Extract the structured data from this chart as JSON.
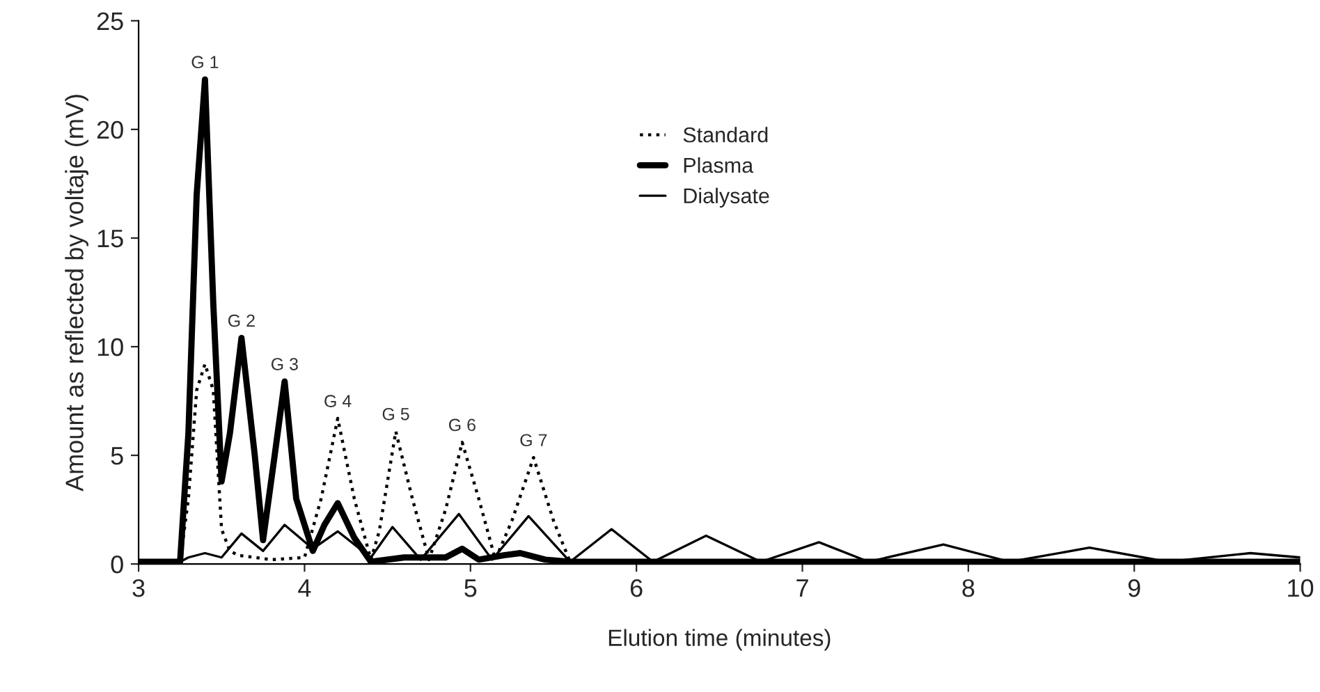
{
  "chart_data": {
    "type": "line",
    "xlabel": "Elution time (minutes)",
    "ylabel": "Amount as reflected by voltaje (mV)",
    "xlim": [
      3,
      10
    ],
    "ylim": [
      0,
      25
    ],
    "xticks": [
      3,
      4,
      5,
      6,
      7,
      8,
      9,
      10
    ],
    "yticks": [
      0,
      5,
      10,
      15,
      20,
      25
    ],
    "grid": false,
    "legend": "top right",
    "marker": "none",
    "series": [
      {
        "name": "Standard",
        "color": "#000000",
        "line_style": "dotted",
        "x": [
          3.0,
          3.25,
          3.3,
          3.35,
          3.4,
          3.45,
          3.5,
          3.55,
          3.6,
          3.7,
          3.8,
          4.0,
          4.1,
          4.2,
          4.3,
          4.4,
          4.45,
          4.55,
          4.65,
          4.75,
          4.85,
          4.95,
          5.05,
          5.15,
          5.25,
          5.38,
          5.5,
          5.6,
          10.0
        ],
        "values": [
          0.1,
          0.1,
          3.0,
          8.0,
          9.2,
          8.0,
          1.6,
          0.6,
          0.4,
          0.3,
          0.2,
          0.3,
          3.0,
          6.7,
          3.0,
          0.2,
          1.5,
          6.1,
          3.0,
          0.2,
          2.5,
          5.6,
          3.0,
          0.2,
          2.0,
          4.9,
          2.0,
          0.1,
          0.1
        ]
      },
      {
        "name": "Plasma",
        "color": "#000000",
        "line_style": "solid",
        "x": [
          3.0,
          3.25,
          3.3,
          3.35,
          3.4,
          3.45,
          3.5,
          3.55,
          3.62,
          3.7,
          3.75,
          3.82,
          3.88,
          3.95,
          4.05,
          4.12,
          4.2,
          4.3,
          4.4,
          4.6,
          4.85,
          4.95,
          5.05,
          5.2,
          5.3,
          5.45,
          5.6,
          10.0
        ],
        "values": [
          0.1,
          0.1,
          6.0,
          17.0,
          22.3,
          12.0,
          3.8,
          6.0,
          10.4,
          5.0,
          1.1,
          5.0,
          8.4,
          3.0,
          0.6,
          1.8,
          2.8,
          1.2,
          0.1,
          0.3,
          0.3,
          0.7,
          0.2,
          0.4,
          0.5,
          0.2,
          0.1,
          0.1
        ]
      },
      {
        "name": "Dialysate",
        "color": "#000000",
        "line_style": "solid",
        "x": [
          3.0,
          3.25,
          3.3,
          3.4,
          3.5,
          3.62,
          3.75,
          3.88,
          4.05,
          4.2,
          4.4,
          4.53,
          4.7,
          4.93,
          5.13,
          5.35,
          5.6,
          5.85,
          6.1,
          6.42,
          6.75,
          7.1,
          7.4,
          7.85,
          8.25,
          8.73,
          9.2,
          9.7,
          10.0
        ],
        "values": [
          0.1,
          0.1,
          0.3,
          0.5,
          0.3,
          1.4,
          0.6,
          1.8,
          0.7,
          1.5,
          0.3,
          1.7,
          0.2,
          2.3,
          0.2,
          2.2,
          0.1,
          1.6,
          0.1,
          1.3,
          0.1,
          1.0,
          0.1,
          0.9,
          0.1,
          0.75,
          0.1,
          0.5,
          0.3
        ]
      }
    ],
    "annotations": [
      {
        "text": "G 1",
        "x": 3.4,
        "y": 22.3
      },
      {
        "text": "G 2",
        "x": 3.62,
        "y": 10.4
      },
      {
        "text": "G 3",
        "x": 3.88,
        "y": 8.4
      },
      {
        "text": "G 4",
        "x": 4.2,
        "y": 6.7
      },
      {
        "text": "G 5",
        "x": 4.55,
        "y": 6.1
      },
      {
        "text": "G 6",
        "x": 4.95,
        "y": 5.6
      },
      {
        "text": "G 7",
        "x": 5.38,
        "y": 4.9
      }
    ]
  }
}
